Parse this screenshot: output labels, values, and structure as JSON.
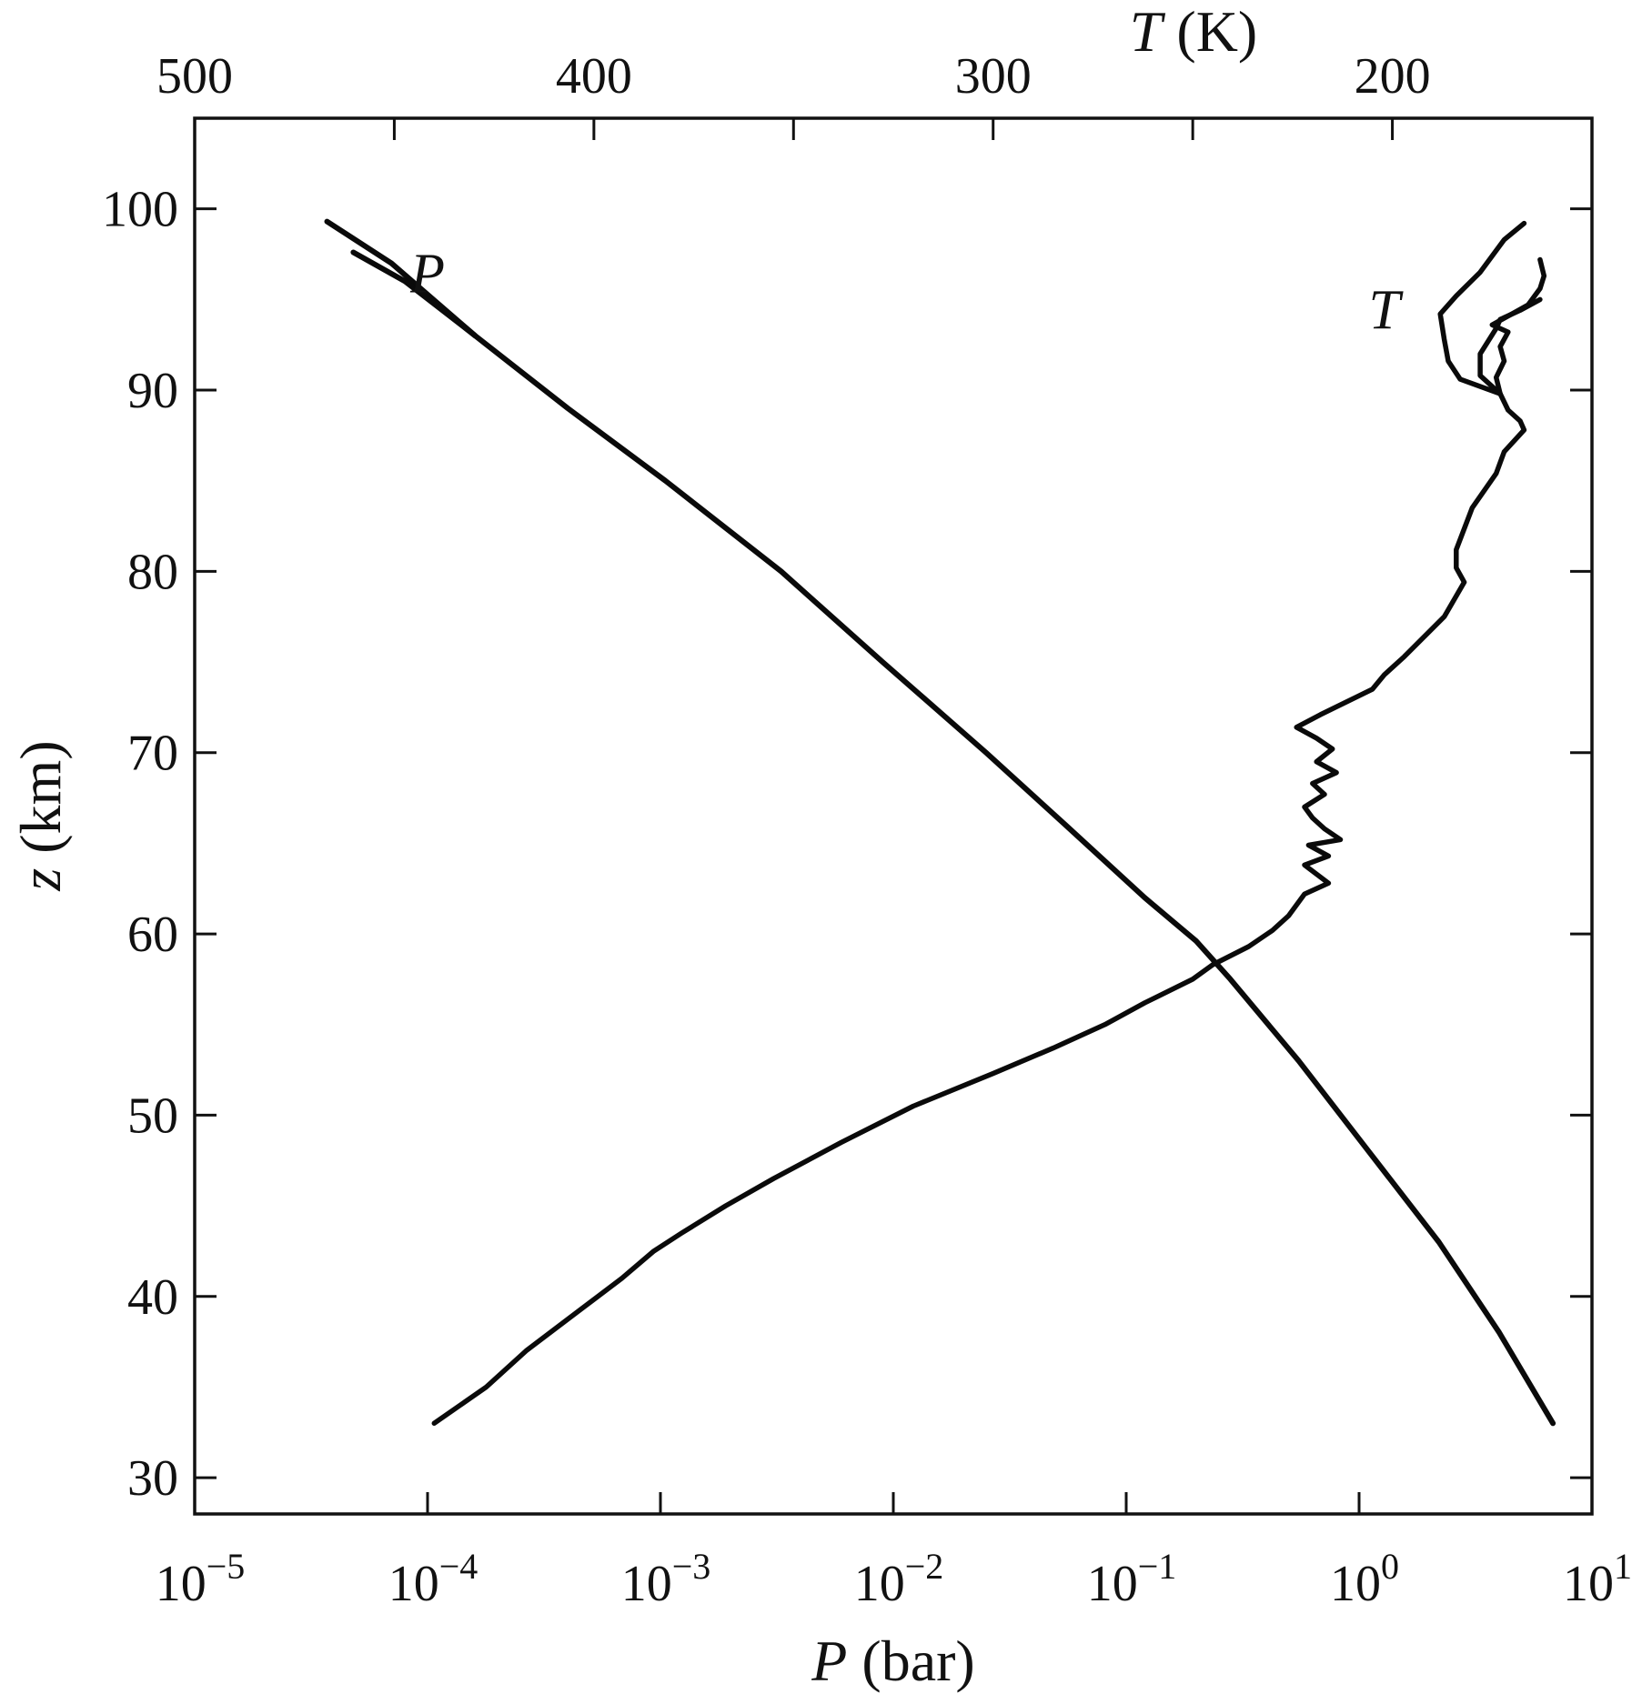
{
  "chart_data": {
    "type": "line",
    "title": "",
    "y_axis": {
      "label_var": "z",
      "label_unit": "(km)",
      "range": [
        28,
        105
      ],
      "ticks": [
        30,
        40,
        50,
        60,
        70,
        80,
        90,
        100
      ],
      "tick_labels": [
        "30",
        "40",
        "50",
        "60",
        "70",
        "80",
        "90",
        "100"
      ]
    },
    "x_axis_bottom": {
      "label_var": "P",
      "label_unit": "(bar)",
      "scale": "log",
      "range": [
        1e-05,
        10
      ],
      "ticks": [
        1e-05,
        0.0001,
        0.001,
        0.01,
        0.1,
        1,
        10
      ],
      "tick_labels": [
        {
          "base": "10",
          "exp": "−5"
        },
        {
          "base": "10",
          "exp": "−4"
        },
        {
          "base": "10",
          "exp": "−3"
        },
        {
          "base": "10",
          "exp": "−2"
        },
        {
          "base": "10",
          "exp": "−1"
        },
        {
          "base": "10",
          "exp": "0"
        },
        {
          "base": "10",
          "exp": "1"
        }
      ]
    },
    "x_axis_top": {
      "label_var": "T",
      "label_unit": "(K)",
      "range": [
        500,
        150
      ],
      "ticks": [
        500,
        450,
        400,
        350,
        300,
        250,
        200,
        150
      ],
      "tick_labels": [
        "500",
        "",
        "400",
        "",
        "300",
        "",
        "200",
        ""
      ]
    },
    "annotations": [
      {
        "text": "P",
        "x_axis": "bottom",
        "x": 0.0001,
        "y": 96.5
      },
      {
        "text": "T",
        "x_axis": "top",
        "x": 202,
        "y": 94.5
      }
    ],
    "series": [
      {
        "x_axis": "bottom",
        "points": [
          [
            6.8,
            33
          ],
          [
            4,
            38
          ],
          [
            2.2,
            43
          ],
          [
            1.1,
            48
          ],
          [
            0.55,
            53
          ],
          [
            0.28,
            57.5
          ],
          [
            0.2,
            59.6
          ],
          [
            0.12,
            62
          ],
          [
            0.055,
            66
          ],
          [
            0.025,
            70
          ],
          [
            0.009,
            75
          ],
          [
            0.0033,
            80
          ],
          [
            0.00105,
            85
          ],
          [
            0.0004,
            89
          ],
          [
            0.00016,
            93
          ],
          [
            7e-05,
            97
          ],
          [
            3.7e-05,
            99.3
          ]
        ]
      },
      {
        "x_axis": "bottom",
        "points": [
          [
            0.00016,
            93
          ],
          [
            8e-05,
            96
          ],
          [
            4.8e-05,
            97.6
          ]
        ]
      },
      {
        "x_axis": "top",
        "points": [
          [
            440,
            33
          ],
          [
            427,
            35
          ],
          [
            417,
            37
          ],
          [
            408,
            38.5
          ],
          [
            399,
            40
          ],
          [
            393,
            41
          ],
          [
            385,
            42.5
          ],
          [
            378,
            43.5
          ],
          [
            367,
            45
          ],
          [
            355,
            46.5
          ],
          [
            338,
            48.5
          ],
          [
            320,
            50.5
          ],
          [
            300,
            52.3
          ],
          [
            285,
            53.7
          ],
          [
            272,
            55
          ],
          [
            262,
            56.2
          ],
          [
            250,
            57.5
          ],
          [
            245,
            58.3
          ],
          [
            236,
            59.3
          ],
          [
            230,
            60.2
          ],
          [
            226,
            61
          ],
          [
            224,
            61.6
          ],
          [
            222,
            62.2
          ],
          [
            216,
            62.8
          ],
          [
            219,
            63.3
          ],
          [
            222,
            63.8
          ],
          [
            216,
            64.3
          ],
          [
            221,
            64.9
          ],
          [
            213,
            65.2
          ],
          [
            217,
            65.8
          ],
          [
            220,
            66.4
          ],
          [
            222,
            67
          ],
          [
            217,
            67.7
          ],
          [
            220,
            68.3
          ],
          [
            214,
            68.9
          ],
          [
            219,
            69.5
          ],
          [
            215,
            70.2
          ],
          [
            219,
            70.8
          ],
          [
            224,
            71.4
          ],
          [
            218,
            72.1
          ],
          [
            205,
            73.5
          ],
          [
            202,
            74.3
          ],
          [
            197,
            75.3
          ],
          [
            187,
            77.5
          ],
          [
            182,
            79.4
          ],
          [
            184,
            80.2
          ],
          [
            184,
            81.2
          ],
          [
            180,
            83.5
          ],
          [
            174,
            85.4
          ],
          [
            172,
            86.6
          ],
          [
            167,
            87.8
          ],
          [
            168,
            88.3
          ],
          [
            171,
            88.9
          ],
          [
            173,
            89.8
          ],
          [
            174,
            90.7
          ],
          [
            172,
            91.6
          ],
          [
            173,
            92.4
          ],
          [
            171,
            93.2
          ],
          [
            175,
            93.6
          ],
          [
            166,
            94.7
          ],
          [
            163,
            95.6
          ],
          [
            162,
            96.3
          ],
          [
            163,
            97.2
          ]
        ]
      },
      {
        "x_axis": "top",
        "points": [
          [
            173,
            89.8
          ],
          [
            178,
            90.8
          ],
          [
            178,
            92
          ],
          [
            174,
            93.4
          ],
          [
            173,
            93.9
          ],
          [
            168,
            94.4
          ],
          [
            163,
            95
          ]
        ]
      },
      {
        "x_axis": "top",
        "points": [
          [
            173,
            89.8
          ],
          [
            183,
            90.6
          ],
          [
            186,
            91.6
          ],
          [
            187,
            92.8
          ],
          [
            188,
            94.2
          ],
          [
            184,
            95.2
          ],
          [
            178,
            96.5
          ],
          [
            175,
            97.4
          ],
          [
            172,
            98.3
          ],
          [
            167,
            99.2
          ]
        ]
      }
    ]
  }
}
